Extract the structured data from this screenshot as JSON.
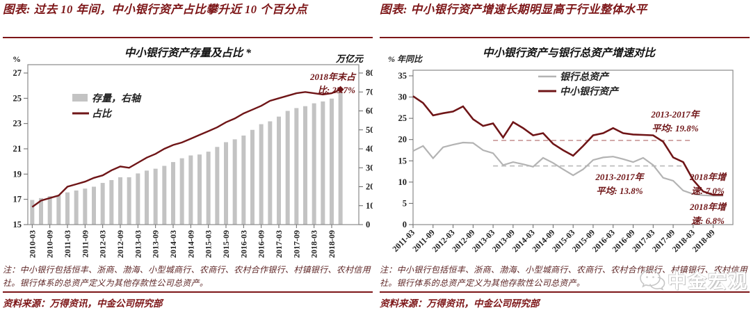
{
  "figures": {
    "left": {
      "headline": "图表: 过去 10 年间，中小银行资产占比攀升近 10 个百分点",
      "note": "注：中小银行包括恒丰、浙商、渤海、小型城商行、农商行、农村合作银行、村镇银行、农村信用社。银行体系的总资产定义为其他存款性公司总资产。",
      "source": "资料来源：万得资讯，中金公司研究部"
    },
    "right": {
      "headline": "图表: 中小银行资产增速长期明显高于行业整体水平",
      "note": "注：中小银行包括恒丰、浙商、渤海、小型城商行、农商行、农村合作银行、村镇银行、农村信用社。银行体系的总资产定义为其他存款性公司总资产。",
      "source": "资料来源：万得资讯，中金公司研究部"
    }
  },
  "watermark": {
    "label": "中金宏观",
    "icon": "wechat-bubbles-icon"
  },
  "colors": {
    "accent": "#7d1618",
    "line_dark_red": "#6f1517",
    "bar_gray": "#c3c3c3",
    "line_gray": "#b3b3b3",
    "dash_pink": "#cfa3a3",
    "dash_gray": "#bcbcbc",
    "axis_text": "#222222"
  },
  "chart_data": [
    {
      "type": "bar",
      "title": "中小银行资产存量及占比 *",
      "left_axis_label": "%",
      "right_axis_label": "万亿元",
      "left_ylim": [
        15,
        27
      ],
      "left_ticks": [
        27,
        25,
        23,
        21,
        19,
        17,
        15
      ],
      "right_ylim": [
        0,
        80
      ],
      "right_ticks": [
        80,
        70,
        60,
        50,
        40,
        30,
        20,
        10,
        0
      ],
      "categories": [
        "2010-03",
        "2010-06",
        "2010-09",
        "2010-12",
        "2011-03",
        "2011-06",
        "2011-09",
        "2011-12",
        "2012-03",
        "2012-06",
        "2012-09",
        "2012-12",
        "2013-03",
        "2013-06",
        "2013-09",
        "2013-12",
        "2014-03",
        "2014-06",
        "2014-09",
        "2014-12",
        "2015-03",
        "2015-06",
        "2015-09",
        "2015-12",
        "2016-03",
        "2016-06",
        "2016-09",
        "2016-12",
        "2017-03",
        "2017-06",
        "2017-09",
        "2017-12",
        "2018-03",
        "2018-06",
        "2018-09",
        "2018-12"
      ],
      "x_tick_labels": [
        "2010-03",
        "2010-09",
        "2011-03",
        "2011-09",
        "2012-03",
        "2012-09",
        "2013-03",
        "2013-09",
        "2014-03",
        "2014-09",
        "2015-03",
        "2015-09",
        "2016-03",
        "2016-09",
        "2017-03",
        "2017-09",
        "2018-03",
        "2018-09"
      ],
      "series": [
        {
          "name": "存量，右轴",
          "type": "bar",
          "axis": "right",
          "values": [
            13,
            14,
            15,
            15.5,
            17,
            18,
            19,
            20,
            22,
            23.5,
            25,
            25,
            27,
            28.5,
            29.5,
            31,
            33,
            35,
            36.5,
            37,
            38.5,
            41,
            43.5,
            45,
            47,
            50,
            53,
            54.5,
            57,
            60,
            61.5,
            62.5,
            64,
            65,
            66.5,
            70
          ]
        },
        {
          "name": "占比",
          "type": "line",
          "axis": "left",
          "values": [
            16.4,
            16.9,
            17.1,
            17.3,
            18.0,
            18.2,
            18.4,
            18.7,
            18.9,
            19.3,
            19.6,
            19.5,
            19.9,
            20.3,
            20.6,
            21.0,
            21.3,
            21.5,
            21.8,
            22.1,
            22.4,
            22.7,
            23.1,
            23.4,
            23.8,
            24.1,
            24.4,
            24.8,
            25.0,
            25.2,
            25.4,
            25.5,
            25.4,
            25.3,
            25.4,
            25.7
          ]
        }
      ],
      "annotation": {
        "lines": [
          "2018年末占",
          "比:  25.7%"
        ]
      },
      "legend_position": "upper-left-inside",
      "grid": false
    },
    {
      "type": "line",
      "title": "中小银行资产与银行总资产增速对比",
      "ylabel": "% 年同比",
      "ylim": [
        0,
        35
      ],
      "yticks": [
        35,
        30,
        25,
        20,
        15,
        10,
        5,
        0
      ],
      "categories": [
        "2011-03",
        "2011-06",
        "2011-09",
        "2011-12",
        "2012-03",
        "2012-06",
        "2012-09",
        "2012-12",
        "2013-03",
        "2013-06",
        "2013-09",
        "2013-12",
        "2014-03",
        "2014-06",
        "2014-09",
        "2014-12",
        "2015-03",
        "2015-06",
        "2015-09",
        "2015-12",
        "2016-03",
        "2016-06",
        "2016-09",
        "2016-12",
        "2017-03",
        "2017-06",
        "2017-09",
        "2017-12",
        "2018-03",
        "2018-06",
        "2018-09",
        "2018-12"
      ],
      "x_tick_labels": [
        "2011-03",
        "2011-09",
        "2012-03",
        "2012-09",
        "2013-03",
        "2013-09",
        "2014-03",
        "2014-09",
        "2015-03",
        "2015-09",
        "2016-03",
        "2016-09",
        "2017-03",
        "2017-09",
        "2018-03",
        "2018-09"
      ],
      "series": [
        {
          "name": "银行总资产",
          "values": [
            17.3,
            18.5,
            15.6,
            18.2,
            18.8,
            19.3,
            19.2,
            17.5,
            16.8,
            14.0,
            14.7,
            14.2,
            13.6,
            15.7,
            14.5,
            13.0,
            11.6,
            13.0,
            15.2,
            15.8,
            16.0,
            15.4,
            14.7,
            15.7,
            14.0,
            11.0,
            10.3,
            8.0,
            7.2,
            6.9,
            6.8,
            6.8
          ]
        },
        {
          "name": "中小银行资产",
          "values": [
            30.2,
            28.6,
            25.7,
            26.2,
            26.6,
            27.8,
            24.8,
            23.2,
            23.8,
            20.5,
            24.1,
            22.7,
            21.0,
            21.5,
            19.0,
            17.5,
            16.2,
            18.5,
            21.0,
            21.5,
            22.7,
            21.5,
            21.2,
            21.1,
            21.0,
            19.5,
            15.8,
            14.7,
            10.5,
            7.8,
            7.0,
            7.0
          ]
        }
      ],
      "ref_lines": [
        {
          "value": 19.8,
          "from": "2013-03",
          "to": "2018-03",
          "style": "pink-dash"
        },
        {
          "value": 13.8,
          "from": "2013-03",
          "to": "2017-12",
          "style": "gray-dash"
        }
      ],
      "annotations": [
        {
          "lines": [
            "2013-2017年",
            "平均:  19.8%"
          ]
        },
        {
          "lines": [
            "2013-2017年",
            "平均:  13.8%"
          ]
        },
        {
          "lines": [
            "2018年增",
            "速:  7.0%"
          ]
        },
        {
          "lines": [
            "2018年增",
            "速:  6.8%"
          ]
        }
      ],
      "legend_position": "upper-center-inside",
      "grid": false
    }
  ]
}
